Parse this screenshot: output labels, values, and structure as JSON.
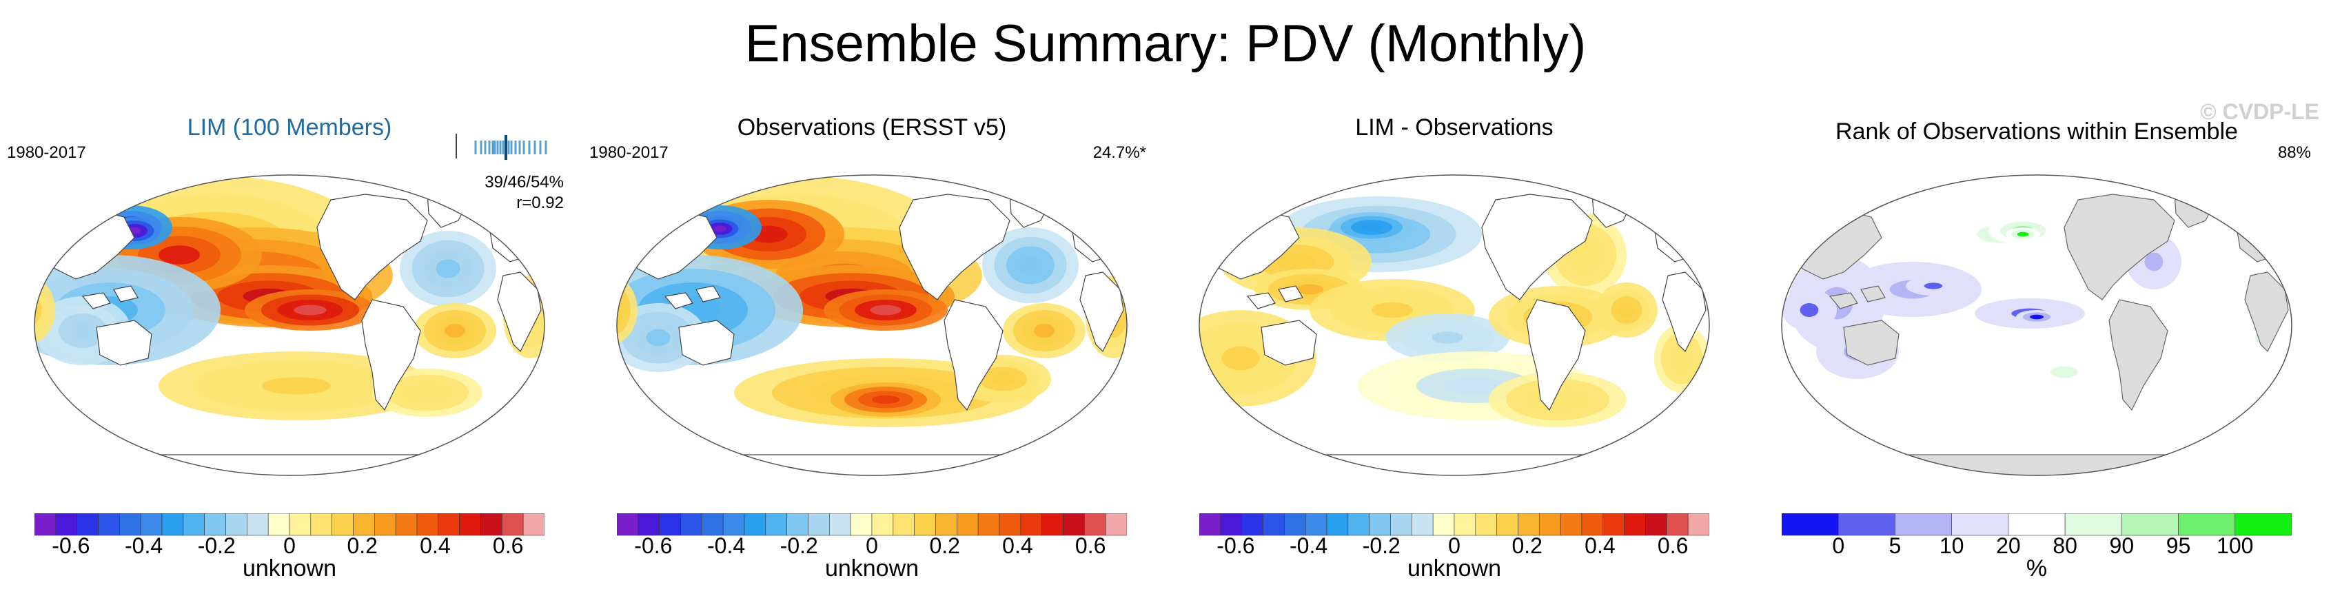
{
  "title": "Ensemble Summary: PDV (Monthly)",
  "watermark": "© CVDP-LE",
  "colors": {
    "diverging": [
      "#7a1fcc",
      "#4a18d8",
      "#2b33e6",
      "#2a55e8",
      "#2f72e6",
      "#3c8aea",
      "#2a9ff0",
      "#50b4f0",
      "#80c8f2",
      "#aad6f0",
      "#c8e4f3",
      "#fefecb",
      "#fff39a",
      "#fde472",
      "#fbd04a",
      "#fab530",
      "#f89a1e",
      "#f57a14",
      "#f05a0c",
      "#e83a0a",
      "#de1a0c",
      "#c8101a",
      "#e05050",
      "#f2a8a8"
    ],
    "rank": [
      "#1414f0",
      "#6060f0",
      "#b4b4f4",
      "#e0e0fa",
      "#ffffff",
      "#e0fae0",
      "#b4f4b4",
      "#6ef06e",
      "#14f014"
    ],
    "land_rank": "#dcdcdc"
  },
  "panels": [
    {
      "title": "LIM (100 Members)",
      "left_label": "1980-2017",
      "stats": {
        "pct": "39/46/54%",
        "r": "r=0.92"
      },
      "colorbar": {
        "ticks": [
          "-0.6",
          "-0.4",
          "-0.2",
          "0",
          "0.2",
          "0.4",
          "0.6"
        ],
        "label": "unknown"
      }
    },
    {
      "title": "Observations (ERSST v5)",
      "left_label": "1980-2017",
      "right_label": "24.7%*",
      "colorbar": {
        "ticks": [
          "-0.6",
          "-0.4",
          "-0.2",
          "0",
          "0.2",
          "0.4",
          "0.6"
        ],
        "label": "unknown"
      }
    },
    {
      "title": "LIM - Observations",
      "colorbar": {
        "ticks": [
          "-0.6",
          "-0.4",
          "-0.2",
          "0",
          "0.2",
          "0.4",
          "0.6"
        ],
        "label": "unknown"
      }
    },
    {
      "title": "Rank of Observations within Ensemble",
      "right_label": "88%",
      "colorbar": {
        "ticks": [
          "0",
          "5",
          "10",
          "20",
          "80",
          "90",
          "95",
          "100"
        ],
        "label": "%"
      }
    }
  ],
  "chart_data": [
    {
      "type": "heatmap",
      "title": "LIM (100 Members)",
      "period": "1980-2017",
      "range": [
        -0.7,
        0.7
      ],
      "ticks": [
        -0.6,
        -0.4,
        -0.2,
        0,
        0.2,
        0.4,
        0.6
      ],
      "colorbar_label": "unknown",
      "stats": "39/46/54%",
      "pattern_correlation": 0.92
    },
    {
      "type": "heatmap",
      "title": "Observations (ERSST v5)",
      "period": "1980-2017",
      "range": [
        -0.7,
        0.7
      ],
      "ticks": [
        -0.6,
        -0.4,
        -0.2,
        0,
        0.2,
        0.4,
        0.6
      ],
      "colorbar_label": "unknown",
      "variance_explained": "24.7%*"
    },
    {
      "type": "heatmap",
      "title": "LIM - Observations",
      "range": [
        -0.7,
        0.7
      ],
      "ticks": [
        -0.6,
        -0.4,
        -0.2,
        0,
        0.2,
        0.4,
        0.6
      ],
      "colorbar_label": "unknown"
    },
    {
      "type": "heatmap",
      "title": "Rank of Observations within Ensemble",
      "levels": [
        0,
        5,
        10,
        20,
        80,
        90,
        95,
        100
      ],
      "colorbar_label": "%",
      "summary": "88%"
    }
  ]
}
